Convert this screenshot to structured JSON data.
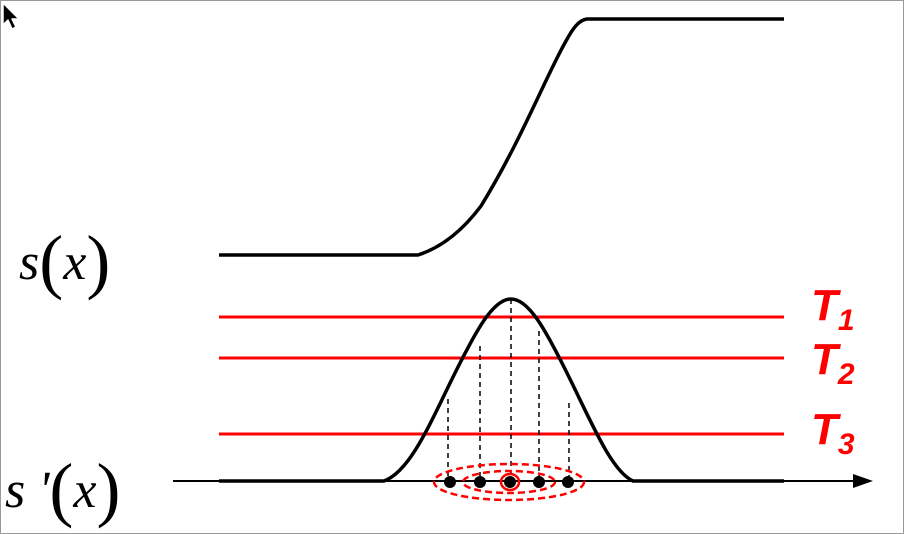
{
  "labels": {
    "s_func": "s",
    "s_prime_func": "s '",
    "variable": "x",
    "open_paren": "(",
    "close_paren": ")"
  },
  "thresholds": [
    {
      "letter": "T",
      "sub": "1"
    },
    {
      "letter": "T",
      "sub": "2"
    },
    {
      "letter": "T",
      "sub": "3"
    }
  ],
  "colors": {
    "curve": "#000000",
    "threshold": "#ff0000",
    "ellipse": "#ff0000"
  },
  "icons": {
    "cursor": "mouse-pointer-icon"
  }
}
